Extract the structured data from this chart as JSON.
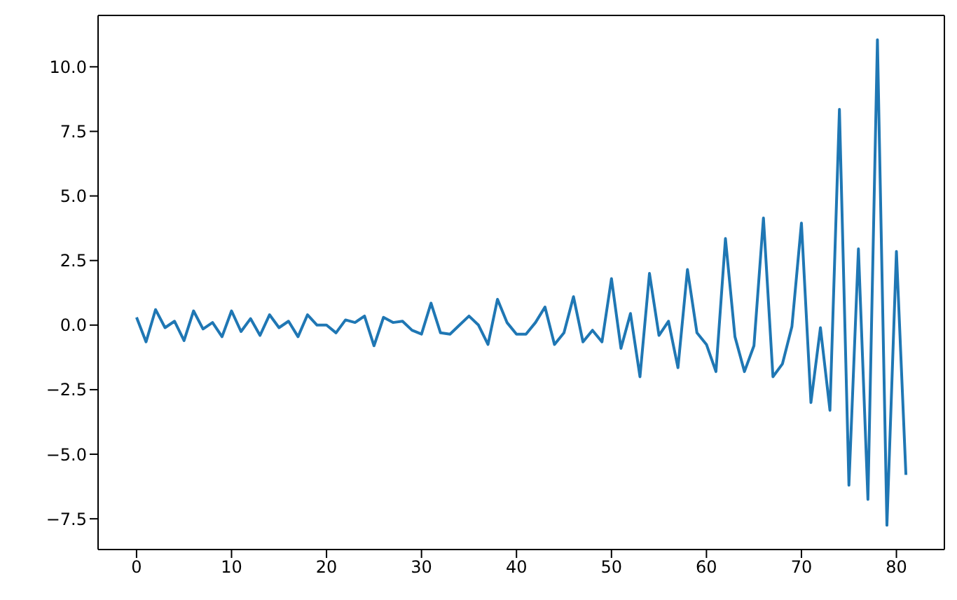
{
  "chart_data": {
    "type": "line",
    "x": [
      0,
      1,
      2,
      3,
      4,
      5,
      6,
      7,
      8,
      9,
      10,
      11,
      12,
      13,
      14,
      15,
      16,
      17,
      18,
      19,
      20,
      21,
      22,
      23,
      24,
      25,
      26,
      27,
      28,
      29,
      30,
      31,
      32,
      33,
      34,
      35,
      36,
      37,
      38,
      39,
      40,
      41,
      42,
      43,
      44,
      45,
      46,
      47,
      48,
      49,
      50,
      51,
      52,
      53,
      54,
      55,
      56,
      57,
      58,
      59,
      60,
      61,
      62,
      63,
      64,
      65,
      66,
      67,
      68,
      69,
      70,
      71,
      72,
      73,
      74,
      75,
      76,
      77,
      78,
      79,
      80,
      81
    ],
    "series": [
      {
        "color": "#1f77b4",
        "values": [
          0.3,
          -0.65,
          0.6,
          -0.1,
          0.15,
          -0.6,
          0.55,
          -0.15,
          0.1,
          -0.45,
          0.55,
          -0.25,
          0.25,
          -0.4,
          0.4,
          -0.1,
          0.15,
          -0.45,
          0.4,
          0.0,
          0.0,
          -0.3,
          0.2,
          0.1,
          0.35,
          -0.8,
          0.3,
          0.1,
          0.15,
          -0.2,
          -0.35,
          0.85,
          -0.3,
          -0.35,
          0.0,
          0.35,
          0.0,
          -0.75,
          1.0,
          0.1,
          -0.35,
          -0.35,
          0.1,
          0.7,
          -0.75,
          -0.3,
          1.1,
          -0.65,
          -0.2,
          -0.65,
          1.8,
          -0.9,
          0.45,
          -2.0,
          2.0,
          -0.4,
          0.15,
          -1.65,
          2.15,
          -0.3,
          -0.75,
          -1.8,
          3.35,
          -0.45,
          -1.8,
          -0.8,
          4.15,
          -2.0,
          -1.5,
          -0.05,
          3.95,
          -3.0,
          -0.1,
          -3.3,
          8.35,
          -6.2,
          2.95,
          -6.75,
          11.05,
          -7.75,
          2.85,
          -5.8
        ]
      }
    ],
    "xlim": [
      -4.05,
      85.05
    ],
    "xticks": [
      0,
      10,
      20,
      30,
      40,
      50,
      60,
      70,
      80
    ],
    "ylim": [
      -8.69,
      11.99
    ],
    "yticks": [
      {
        "value": -7.5,
        "label": "−7.5"
      },
      {
        "value": -5,
        "label": "−5.0"
      },
      {
        "value": -2.5,
        "label": "−2.5"
      },
      {
        "value": 0,
        "label": "0.0"
      },
      {
        "value": 2.5,
        "label": "2.5"
      },
      {
        "value": 5,
        "label": "5.0"
      },
      {
        "value": 7.5,
        "label": "7.5"
      },
      {
        "value": 10,
        "label": "10.0"
      }
    ],
    "grid": false,
    "legend": false,
    "marker": "none",
    "line_style": "solid"
  }
}
